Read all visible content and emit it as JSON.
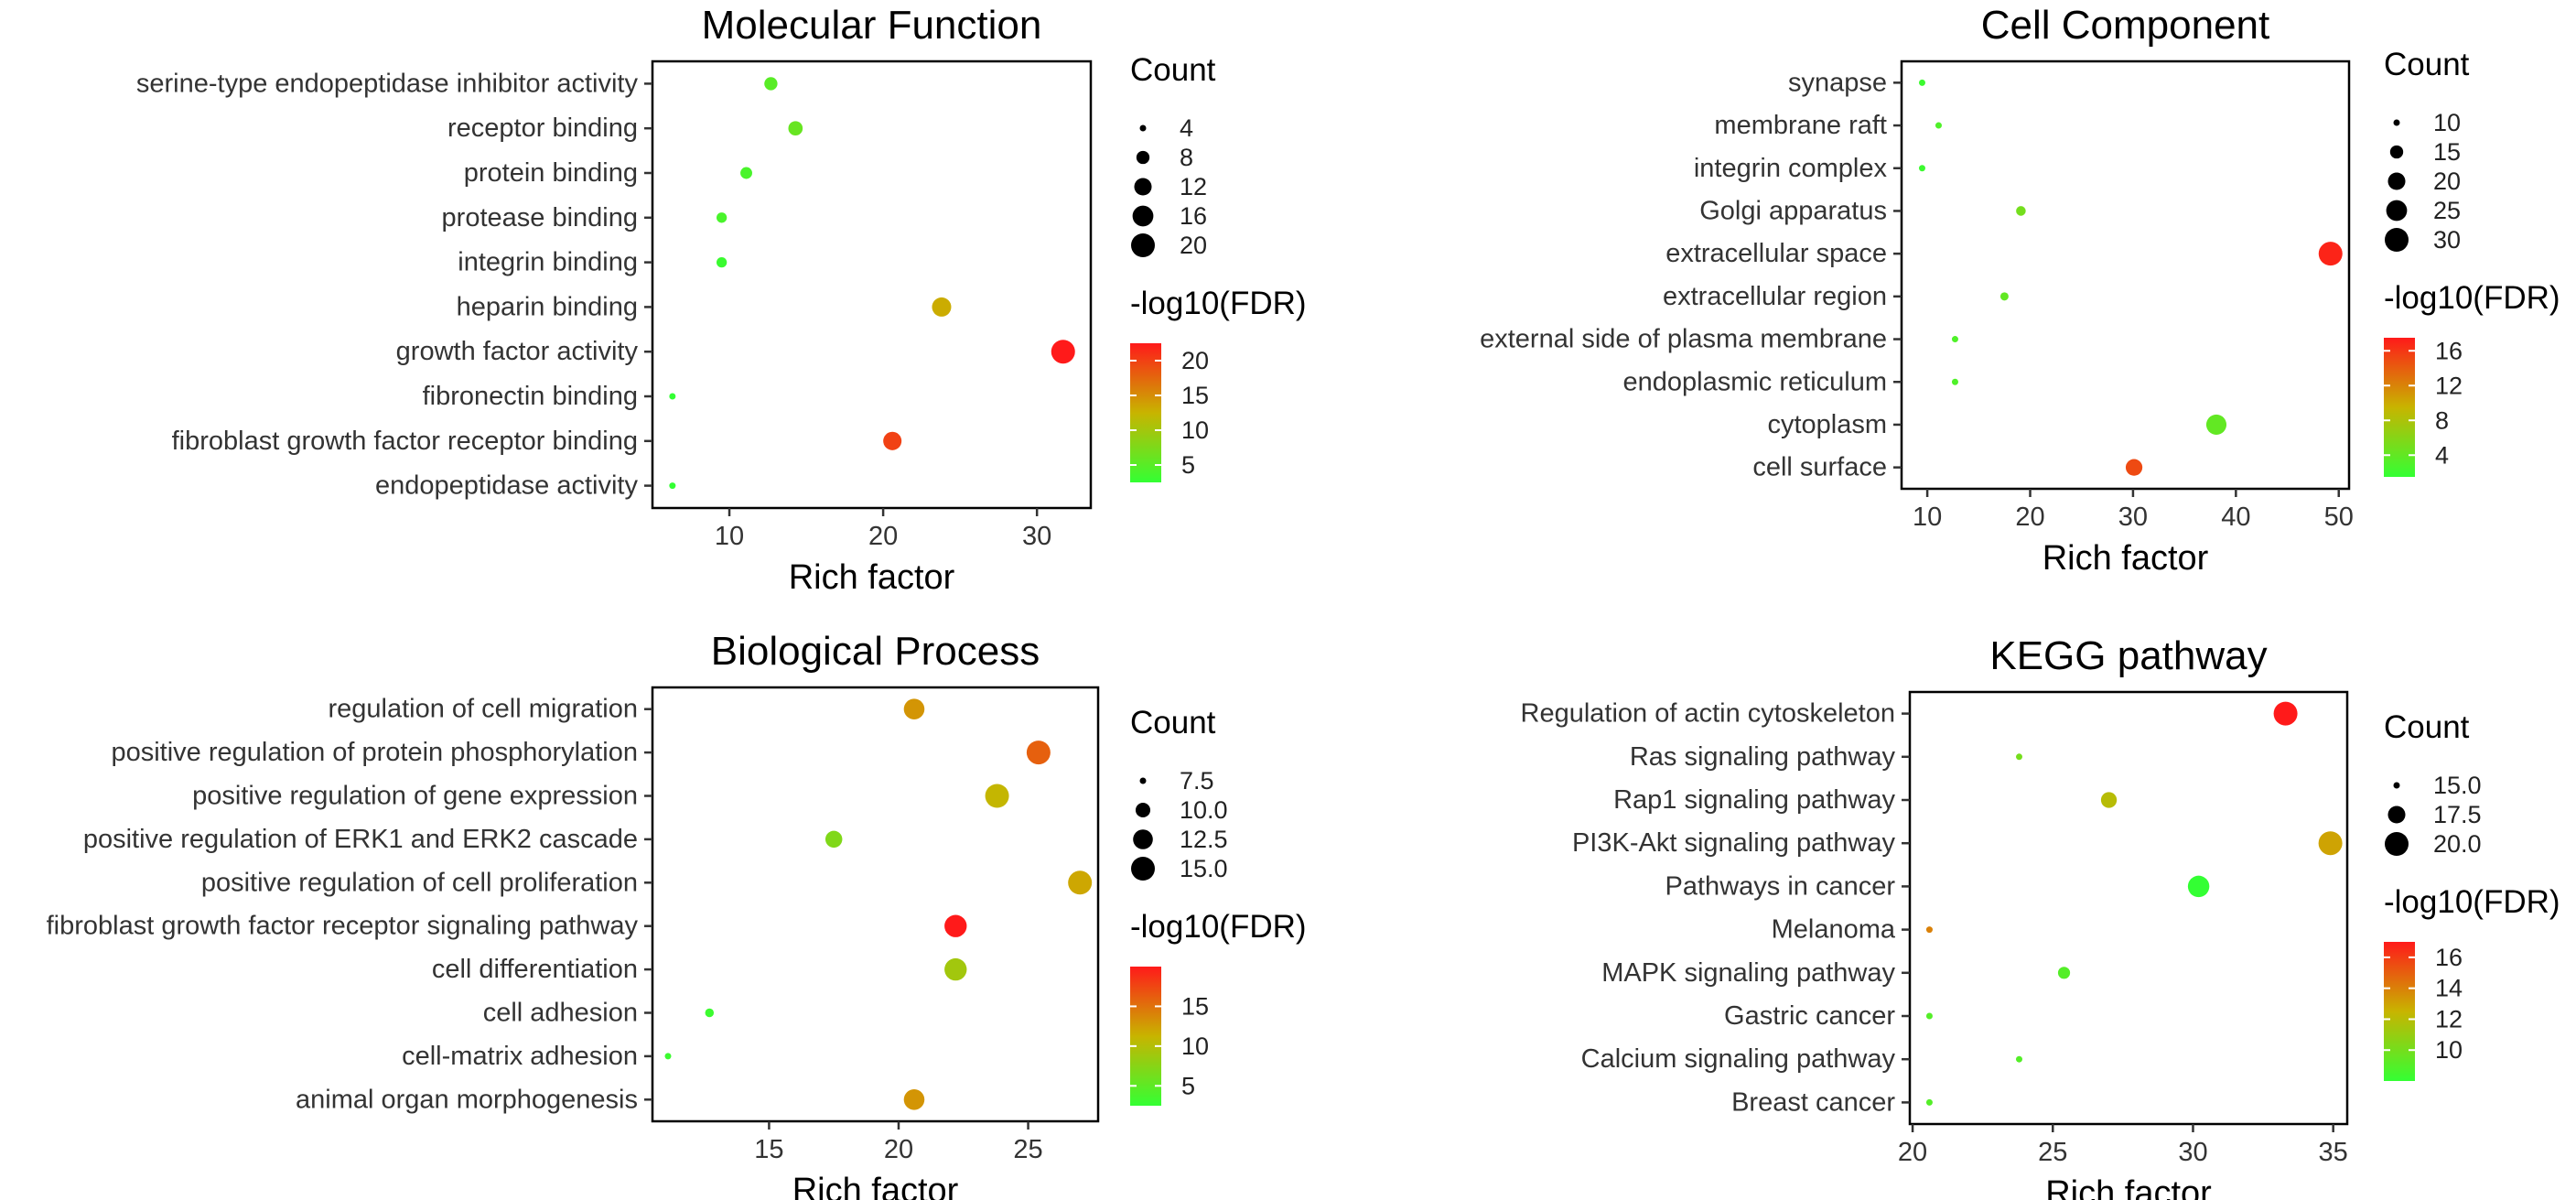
{
  "figure": {
    "size_legend_title": "Count",
    "color_legend_title": "-log10(FDR)",
    "gradient": {
      "low": "#33ff33",
      "mid": "#c8b400",
      "high": "#ff1a1a"
    }
  },
  "chart_data": [
    {
      "type": "scatter",
      "title": "Molecular Function",
      "xlabel": "Rich factor",
      "ylabel": "",
      "xlim": [
        5,
        33.5
      ],
      "xticks": [
        10,
        20,
        30
      ],
      "categories": [
        "serine-type endopeptidase inhibitor activity",
        "receptor binding",
        "protein binding",
        "protease binding",
        "integrin binding",
        "heparin binding",
        "growth factor activity",
        "fibronectin binding",
        "fibroblast growth factor receptor binding",
        "endopeptidase activity"
      ],
      "x": [
        12.7,
        14.3,
        11.1,
        9.5,
        9.5,
        23.8,
        31.7,
        6.3,
        20.6,
        6.3
      ],
      "count": [
        8,
        9,
        7,
        6,
        6,
        14,
        20,
        4,
        13,
        4
      ],
      "log10fdr": [
        5,
        6,
        4,
        4,
        3,
        13,
        23,
        2,
        20,
        2
      ],
      "size_legend": [
        "4",
        "8",
        "12",
        "16",
        "20"
      ],
      "size_legend_values": [
        4,
        8,
        12,
        16,
        20
      ],
      "color_legend": [
        "20",
        "15",
        "10",
        "5"
      ],
      "color_legend_values": [
        20,
        15,
        10,
        5
      ],
      "color_range": [
        2.5,
        22.5
      ]
    },
    {
      "type": "scatter",
      "title": "Cell Component",
      "xlabel": "Rich factor",
      "ylabel": "",
      "xlim": [
        7.5,
        51
      ],
      "xticks": [
        10,
        20,
        30,
        40,
        50
      ],
      "categories": [
        "synapse",
        "membrane raft",
        "integrin complex",
        "Golgi apparatus",
        "extracellular space",
        "extracellular region",
        "external side of plasma membrane",
        "endoplasmic reticulum",
        "cytoplasm",
        "cell surface"
      ],
      "x": [
        9.5,
        11.1,
        9.5,
        19.1,
        49.2,
        17.5,
        12.7,
        12.7,
        38.1,
        30.1
      ],
      "count": [
        6,
        7,
        6,
        12,
        31,
        11,
        8,
        8,
        24,
        19
      ],
      "log10fdr": [
        2,
        3,
        2,
        5,
        17,
        4,
        3,
        3,
        4,
        15
      ],
      "size_legend": [
        "10",
        "15",
        "20",
        "25",
        "30"
      ],
      "size_legend_values": [
        10,
        15,
        20,
        25,
        30
      ],
      "color_legend": [
        "16",
        "12",
        "8",
        "4"
      ],
      "color_legend_values": [
        16,
        12,
        8,
        4
      ],
      "color_range": [
        1.5,
        17.5
      ]
    },
    {
      "type": "scatter",
      "title": "Biological Process",
      "xlabel": "Rich factor",
      "ylabel": "",
      "xlim": [
        10.5,
        27.7
      ],
      "xticks": [
        15,
        20,
        25
      ],
      "categories": [
        "regulation of cell migration",
        "positive regulation of protein phosphorylation",
        "positive regulation of gene expression",
        "positive regulation of ERK1 and ERK2 cascade",
        "positive regulation of cell proliferation",
        "fibroblast growth factor receptor signaling pathway",
        "cell differentiation",
        "cell adhesion",
        "cell-matrix adhesion",
        "animal organ morphogenesis"
      ],
      "x": [
        20.6,
        25.4,
        23.8,
        17.5,
        27.0,
        22.2,
        22.2,
        12.7,
        11.1,
        20.6
      ],
      "count": [
        13,
        16,
        15,
        11,
        17,
        14,
        14,
        8,
        7,
        13
      ],
      "log10fdr": [
        13,
        16,
        11,
        7,
        12,
        20,
        9,
        3,
        3,
        13
      ],
      "size_legend": [
        "7.5",
        "10.0",
        "12.5",
        "15.0"
      ],
      "size_legend_values": [
        7.5,
        10,
        12.5,
        15
      ],
      "color_legend": [
        "15",
        "10",
        "5"
      ],
      "color_legend_values": [
        15,
        10,
        5
      ],
      "color_range": [
        2.5,
        20
      ]
    },
    {
      "type": "scatter",
      "title": "KEGG pathway",
      "xlabel": "Rich factor",
      "ylabel": "",
      "xlim": [
        19.9,
        35.5
      ],
      "xticks": [
        20,
        25,
        30,
        35
      ],
      "categories": [
        "Regulation of actin cytoskeleton",
        "Ras signaling pathway",
        "Rap1 signaling pathway",
        "PI3K-Akt signaling pathway",
        "Pathways in cancer",
        "Melanoma",
        "MAPK signaling pathway",
        "Gastric cancer",
        "Calcium signaling pathway",
        "Breast cancer"
      ],
      "x": [
        33.3,
        23.8,
        27.0,
        34.9,
        30.2,
        20.6,
        25.4,
        20.6,
        23.8,
        20.6
      ],
      "count": [
        21,
        15,
        17,
        22,
        19,
        13,
        16,
        13,
        15,
        13
      ],
      "log10fdr": [
        17,
        10,
        12,
        13,
        8,
        14,
        9,
        9,
        9,
        9
      ],
      "size_legend": [
        "15.0",
        "17.5",
        "20.0"
      ],
      "size_legend_values": [
        15,
        17.5,
        20
      ],
      "color_legend": [
        "16",
        "14",
        "12",
        "10"
      ],
      "color_legend_values": [
        16,
        14,
        12,
        10
      ],
      "color_range": [
        8,
        17
      ]
    }
  ]
}
